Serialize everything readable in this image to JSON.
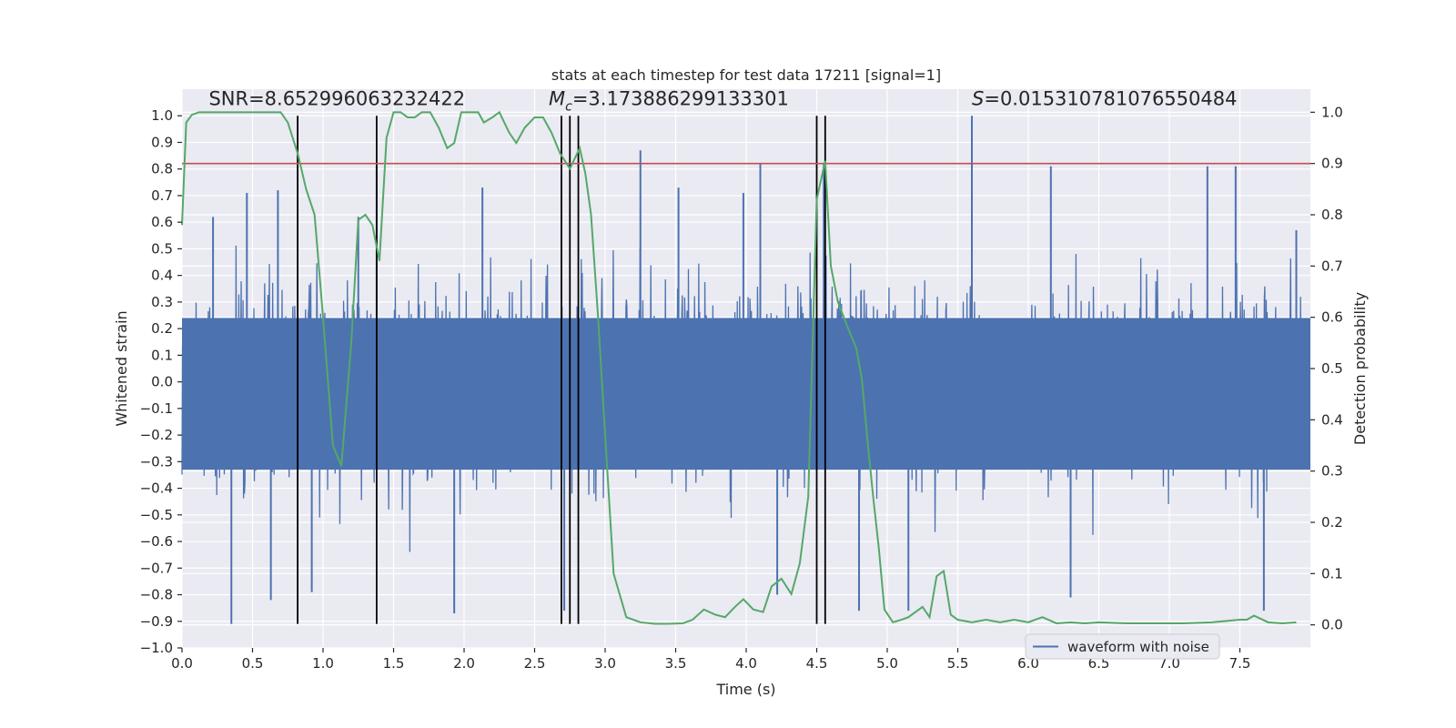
{
  "chart_data": {
    "type": "line",
    "title": "stats at each timestep for test data 17211 [signal=1]",
    "xlabel": "Time (s)",
    "ylabel": "Whitened strain",
    "y2label": "Detection probability",
    "xlim": [
      0.0,
      8.0
    ],
    "ylim": [
      -1.0,
      1.1
    ],
    "y2lim": [
      -0.045,
      1.045
    ],
    "xticks": [
      "0.0",
      "0.5",
      "1.0",
      "1.5",
      "2.0",
      "2.5",
      "3.0",
      "3.5",
      "4.0",
      "4.5",
      "5.0",
      "5.5",
      "6.0",
      "6.5",
      "7.0",
      "7.5"
    ],
    "yticks": [
      "-1.0",
      "-0.9",
      "-0.8",
      "-0.7",
      "-0.6",
      "-0.5",
      "-0.4",
      "-0.3",
      "-0.2",
      "-0.1",
      "0.0",
      "0.1",
      "0.2",
      "0.3",
      "0.4",
      "0.5",
      "0.6",
      "0.7",
      "0.8",
      "0.9",
      "1.0"
    ],
    "y2ticks": [
      "0.0",
      "0.1",
      "0.2",
      "0.3",
      "0.4",
      "0.5",
      "0.6",
      "0.7",
      "0.8",
      "0.9",
      "1.0"
    ],
    "grid": true,
    "legend": {
      "label": "waveform with noise",
      "placement": "bottom-right"
    },
    "annotations": {
      "snr": "SNR=8.652996063232422",
      "mc_sym": "M",
      "mc_sub": "c",
      "mc_val": "=3.173886299133301",
      "s_sym": "S",
      "s_val": "=0.015310781076550484"
    },
    "colors": {
      "waveform": "#4c72b0",
      "probability": "#55a868",
      "threshold": "#c44e52",
      "markers": "#000000",
      "background": "#eaeaf2",
      "grid": "#ffffff"
    },
    "threshold": 0.9,
    "vertical_markers": [
      0.82,
      1.38,
      2.69,
      2.75,
      2.81,
      4.5,
      4.56
    ],
    "waveform_spikes": [
      [
        0.35,
        -0.91
      ],
      [
        0.22,
        0.62
      ],
      [
        0.46,
        0.71
      ],
      [
        0.63,
        -0.82
      ],
      [
        0.68,
        0.72
      ],
      [
        0.92,
        -0.79
      ],
      [
        1.25,
        0.62
      ],
      [
        1.38,
        0.81
      ],
      [
        1.93,
        -0.87
      ],
      [
        2.13,
        0.73
      ],
      [
        2.71,
        -0.86
      ],
      [
        3.25,
        0.87
      ],
      [
        3.52,
        0.73
      ],
      [
        3.98,
        0.71
      ],
      [
        4.1,
        0.82
      ],
      [
        4.22,
        -0.8
      ],
      [
        4.55,
        0.82
      ],
      [
        4.8,
        -0.86
      ],
      [
        5.15,
        -0.86
      ],
      [
        5.6,
        1.0
      ],
      [
        6.16,
        0.81
      ],
      [
        6.3,
        -0.81
      ],
      [
        7.27,
        0.81
      ],
      [
        7.47,
        0.81
      ],
      [
        7.67,
        -0.86
      ],
      [
        7.9,
        0.57
      ]
    ],
    "probability_series": {
      "name": "detection probability",
      "x": [
        0.0,
        0.03,
        0.07,
        0.12,
        0.2,
        0.3,
        0.4,
        0.5,
        0.6,
        0.7,
        0.75,
        0.82,
        0.88,
        0.94,
        1.0,
        1.07,
        1.13,
        1.2,
        1.25,
        1.3,
        1.35,
        1.4,
        1.45,
        1.5,
        1.55,
        1.6,
        1.65,
        1.7,
        1.76,
        1.82,
        1.88,
        1.93,
        1.98,
        2.04,
        2.1,
        2.14,
        2.2,
        2.25,
        2.32,
        2.37,
        2.43,
        2.5,
        2.56,
        2.62,
        2.68,
        2.75,
        2.82,
        2.86,
        2.9,
        2.95,
        3.0,
        3.06,
        3.15,
        3.25,
        3.35,
        3.45,
        3.55,
        3.62,
        3.7,
        3.78,
        3.85,
        3.92,
        3.98,
        4.05,
        4.12,
        4.18,
        4.25,
        4.32,
        4.38,
        4.44,
        4.5,
        4.56,
        4.6,
        4.65,
        4.72,
        4.78,
        4.82,
        4.86,
        4.9,
        4.94,
        4.98,
        5.04,
        5.1,
        5.15,
        5.2,
        5.25,
        5.3,
        5.35,
        5.4,
        5.45,
        5.5,
        5.6,
        5.7,
        5.8,
        5.9,
        6.0,
        6.1,
        6.2,
        6.3,
        6.4,
        6.5,
        6.7,
        6.9,
        7.1,
        7.3,
        7.5,
        7.55,
        7.6,
        7.7,
        7.8,
        7.9
      ],
      "y": [
        0.78,
        0.98,
        0.995,
        1.0,
        1.0,
        1.0,
        1.0,
        1.0,
        1.0,
        1.0,
        0.98,
        0.92,
        0.85,
        0.8,
        0.6,
        0.35,
        0.31,
        0.55,
        0.79,
        0.8,
        0.78,
        0.71,
        0.95,
        1.0,
        1.0,
        0.99,
        0.99,
        1.0,
        1.0,
        0.97,
        0.93,
        0.94,
        1.0,
        1.0,
        1.0,
        0.98,
        0.99,
        1.0,
        0.96,
        0.94,
        0.97,
        0.99,
        0.99,
        0.96,
        0.92,
        0.89,
        0.93,
        0.88,
        0.8,
        0.6,
        0.37,
        0.1,
        0.015,
        0.005,
        0.002,
        0.002,
        0.003,
        0.01,
        0.03,
        0.02,
        0.015,
        0.035,
        0.05,
        0.03,
        0.025,
        0.075,
        0.09,
        0.06,
        0.12,
        0.25,
        0.83,
        0.905,
        0.7,
        0.63,
        0.58,
        0.54,
        0.48,
        0.36,
        0.25,
        0.15,
        0.03,
        0.005,
        0.01,
        0.015,
        0.025,
        0.035,
        0.015,
        0.095,
        0.105,
        0.02,
        0.01,
        0.005,
        0.01,
        0.005,
        0.01,
        0.005,
        0.015,
        0.003,
        0.005,
        0.003,
        0.005,
        0.003,
        0.003,
        0.003,
        0.005,
        0.01,
        0.01,
        0.018,
        0.005,
        0.003,
        0.005
      ]
    }
  }
}
